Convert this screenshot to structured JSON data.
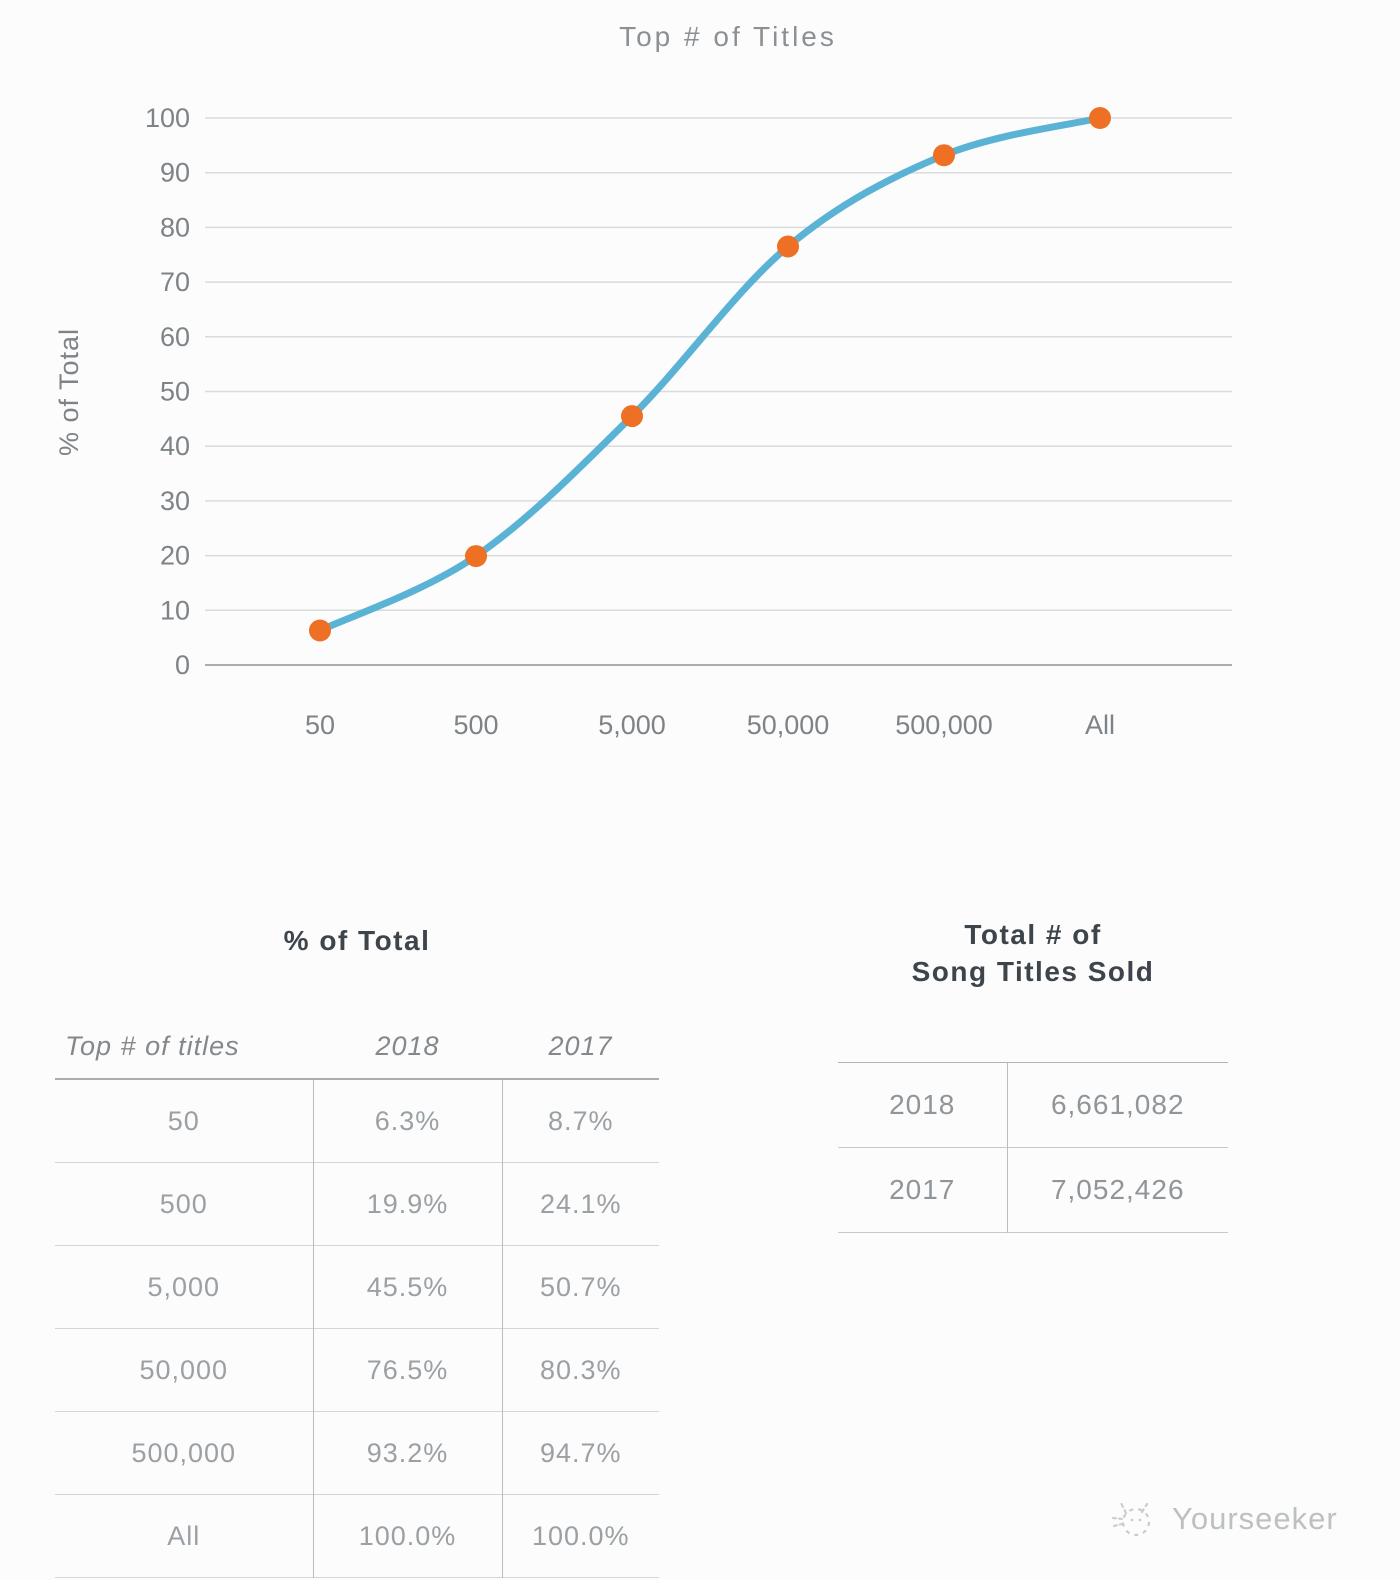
{
  "chart_data": {
    "type": "line",
    "title": "Top # of Titles",
    "ylabel": "% of Total",
    "categories": [
      "50",
      "500",
      "5,000",
      "50,000",
      "500,000",
      "All"
    ],
    "series": [
      {
        "name": "2018 % of total",
        "values": [
          6.3,
          19.9,
          45.5,
          76.5,
          93.2,
          100.0
        ]
      }
    ],
    "ylim": [
      0,
      100
    ],
    "ytick_step": 10,
    "grid": true,
    "legend": "none",
    "line_color": "#5AB3D4",
    "marker_color": "#EE7025",
    "gridline_color": "#d9dbdc",
    "baseline_color": "#aaaeb1"
  },
  "tables": {
    "pct_of_total": {
      "title": "% of Total",
      "columns": [
        "Top # of titles",
        "2018",
        "2017"
      ],
      "rows": [
        [
          "50",
          "6.3%",
          "8.7%"
        ],
        [
          "500",
          "19.9%",
          "24.1%"
        ],
        [
          "5,000",
          "45.5%",
          "50.7%"
        ],
        [
          "50,000",
          "76.5%",
          "80.3%"
        ],
        [
          "500,000",
          "93.2%",
          "94.7%"
        ],
        [
          "All",
          "100.0%",
          "100.0%"
        ]
      ]
    },
    "totals": {
      "title_line1": "Total # of",
      "title_line2": "Song Titles Sold",
      "rows": [
        [
          "2018",
          "6,661,082"
        ],
        [
          "2017",
          "7,052,426"
        ]
      ]
    }
  },
  "watermark": {
    "label": "Yourseeker"
  }
}
